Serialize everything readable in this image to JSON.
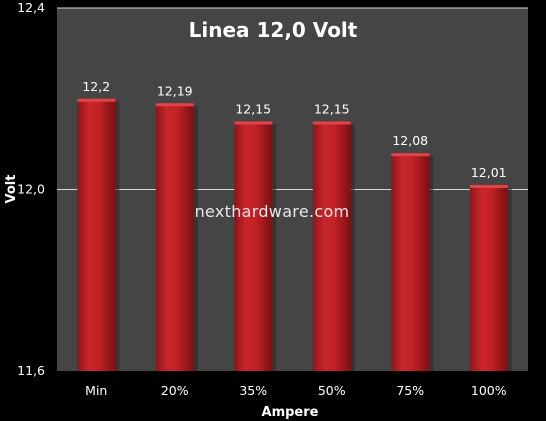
{
  "chart_data": {
    "type": "bar",
    "title": "Linea 12,0 Volt",
    "xlabel": "Ampere",
    "ylabel": "Volt",
    "categories": [
      "Min",
      "20%",
      "35%",
      "50%",
      "75%",
      "100%"
    ],
    "values": [
      12.2,
      12.19,
      12.15,
      12.15,
      12.08,
      12.01
    ],
    "value_labels": [
      "12,2",
      "12,19",
      "12,15",
      "12,15",
      "12,08",
      "12,01"
    ],
    "ylim": [
      11.6,
      12.4
    ],
    "yticks": [
      11.6,
      12.0,
      12.4
    ],
    "ytick_labels": [
      "11,6",
      "12,0",
      "12,4"
    ],
    "grid": true,
    "legend": "none",
    "watermark": "nexthardware.com",
    "colors": {
      "background": "#000000",
      "plot_area": "#454545",
      "bar": "#b81e22",
      "gridline": "#d8d8d8",
      "text": "#ffffff"
    }
  }
}
